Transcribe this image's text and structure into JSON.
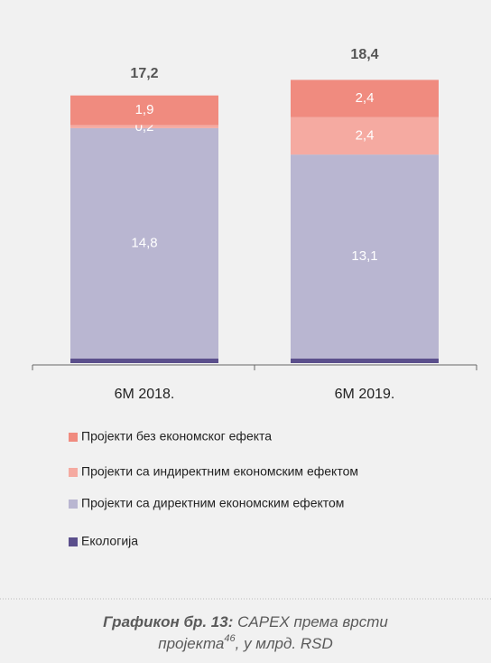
{
  "chart_data": {
    "type": "stacked_bar",
    "categories": [
      "6М 2018.",
      "6М 2019."
    ],
    "series": [
      {
        "name": "Екологија",
        "color": "#5b4f8c",
        "values": [
          0.3,
          0.3
        ],
        "value_labels": [
          "0,3",
          "0,3"
        ]
      },
      {
        "name": "Пројекти са директним економским ефектом",
        "color": "#b9b6d1",
        "values": [
          14.8,
          13.1
        ],
        "value_labels": [
          "14,8",
          "13,1"
        ]
      },
      {
        "name": "Пројекти са индиректним економским ефектом",
        "color": "#f5aaa1",
        "values": [
          0.2,
          2.4
        ],
        "value_labels": [
          "0,2",
          "2,4"
        ]
      },
      {
        "name": "Пројекти без економског ефекта",
        "color": "#f08b7f",
        "values": [
          1.9,
          2.4
        ],
        "value_labels": [
          "1,9",
          "2,4"
        ]
      }
    ],
    "totals": [
      17.2,
      18.4
    ],
    "total_labels": [
      "17,2",
      "18,4"
    ],
    "caption": {
      "bold": "Графикон бр. 13:",
      "text": "CAPEX према врсти",
      "line2": "пројекта",
      "sup": "46",
      "end": ", у млрд. RSD"
    }
  }
}
